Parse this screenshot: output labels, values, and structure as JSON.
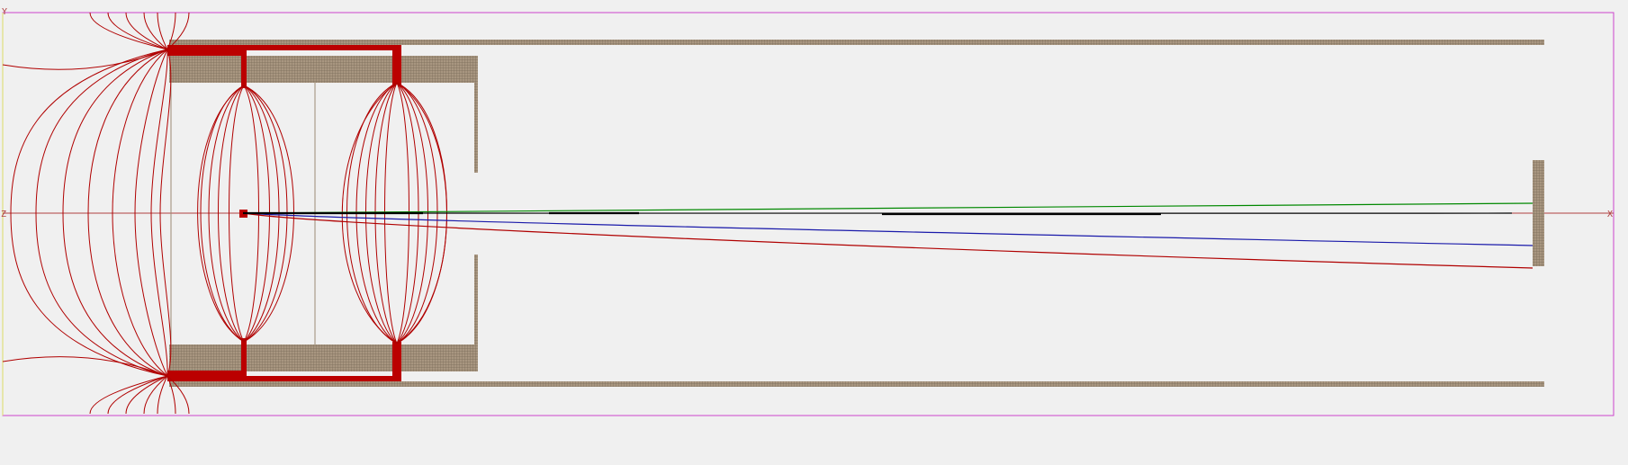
{
  "view": {
    "background": "#f0f0f0",
    "frame_color": "#cc44cc",
    "axis_color": "#b04040",
    "y_axis_line_color": "#dddd66"
  },
  "labels": {
    "y_axis": "Y",
    "z_axis": "Z",
    "x_axis": "X"
  },
  "colors": {
    "electrode_fill": "#9c8a74",
    "electrode_grid": "#7a6a58",
    "potential_contour": "#b00000",
    "electrode_bright": "#bb0000",
    "trajectories": [
      "#008800",
      "#000000",
      "#1a1aaa",
      "#b00000"
    ],
    "detector_fill": "#9c8a74"
  },
  "legend": []
}
